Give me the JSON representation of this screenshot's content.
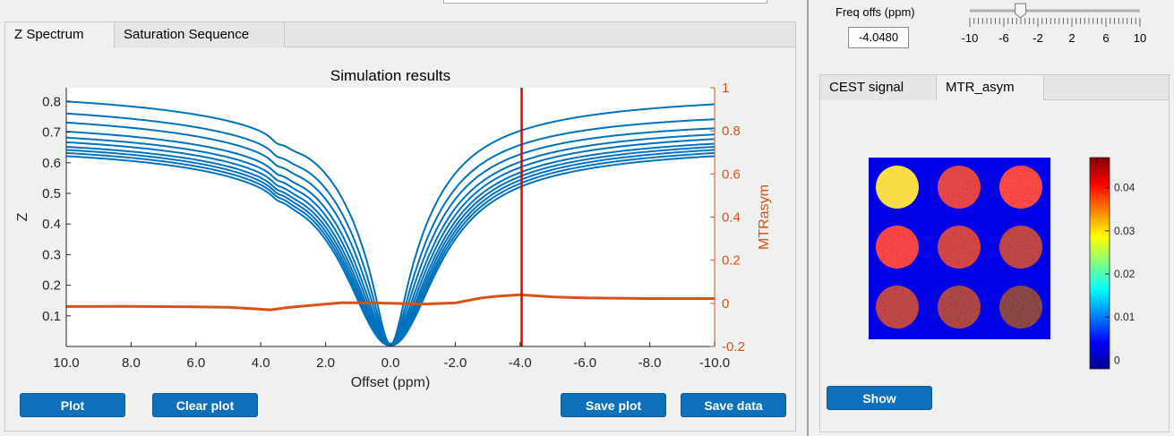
{
  "left_panel": {
    "tabs": [
      "Z Spectrum",
      "Saturation Sequence"
    ],
    "active_tab": "Z Spectrum",
    "buttons": {
      "plot": "Plot",
      "clear_plot": "Clear plot",
      "save_plot": "Save plot",
      "save_data": "Save data"
    }
  },
  "freq_control": {
    "label": "Freq offs (ppm)",
    "value": "-4.0480",
    "slider_ticks": [
      "-10",
      "-6",
      "-2",
      "2",
      "6",
      "10"
    ],
    "slider_min": -10,
    "slider_max": 10,
    "slider_value": -4.048
  },
  "right_panel": {
    "tabs": [
      "CEST signal",
      "MTR_asym"
    ],
    "active_tab": "MTR_asym",
    "show_button": "Show",
    "colorbar_ticks": [
      "0.04",
      "0.03",
      "0.02",
      "0.01",
      "0"
    ],
    "colorbar_range": [
      -0.002,
      0.047
    ],
    "phantom_grid": [
      [
        0.03,
        0.042,
        0.04
      ],
      [
        0.041,
        0.043,
        0.044
      ],
      [
        0.044,
        0.045,
        0.047
      ]
    ]
  },
  "chart_data": {
    "type": "line",
    "title": "Simulation results",
    "xlabel": "Offset (ppm)",
    "ylabel": "Z",
    "y2label": "MTRasym",
    "x_ticks": [
      "10.0",
      "8.0",
      "6.0",
      "4.0",
      "2.0",
      "0.0",
      "-2.0",
      "-4.0",
      "-6.0",
      "-8.0",
      "-10.0"
    ],
    "y_ticks": [
      "0.8",
      "0.7",
      "0.6",
      "0.5",
      "0.4",
      "0.3",
      "0.2",
      "0.1"
    ],
    "y2_ticks": [
      "1",
      "0.8",
      "0.6",
      "0.4",
      "0.2",
      "0",
      "-0.2"
    ],
    "xlim": [
      10,
      -10
    ],
    "ylim": [
      0,
      0.845
    ],
    "y2lim": [
      -0.2,
      1
    ],
    "marker_x": -4.048,
    "z_series": [
      {
        "left": 0.84,
        "right": 0.83,
        "a": 0.46
      },
      {
        "left": 0.8,
        "right": 0.78,
        "a": 0.5
      },
      {
        "left": 0.77,
        "right": 0.75,
        "a": 0.53
      },
      {
        "left": 0.74,
        "right": 0.73,
        "a": 0.56
      },
      {
        "left": 0.72,
        "right": 0.715,
        "a": 0.58
      },
      {
        "left": 0.705,
        "right": 0.7,
        "a": 0.6
      },
      {
        "left": 0.69,
        "right": 0.69,
        "a": 0.61
      },
      {
        "left": 0.68,
        "right": 0.68,
        "a": 0.62
      },
      {
        "left": 0.67,
        "right": 0.67,
        "a": 0.625
      },
      {
        "left": 0.66,
        "right": 0.66,
        "a": 0.63
      }
    ],
    "mtr_series": {
      "x": [
        10,
        8,
        6,
        5,
        4.2,
        3.7,
        3.2,
        2.5,
        1.5,
        0.5,
        0,
        -1,
        -2,
        -2.8,
        -3.3,
        -4,
        -5,
        -6,
        -8,
        -10
      ],
      "y": [
        -0.015,
        -0.014,
        -0.016,
        -0.018,
        -0.025,
        -0.03,
        -0.02,
        -0.01,
        0.003,
        0.002,
        0.0,
        -0.003,
        0.002,
        0.025,
        0.033,
        0.04,
        0.03,
        0.025,
        0.022,
        0.022
      ]
    }
  }
}
